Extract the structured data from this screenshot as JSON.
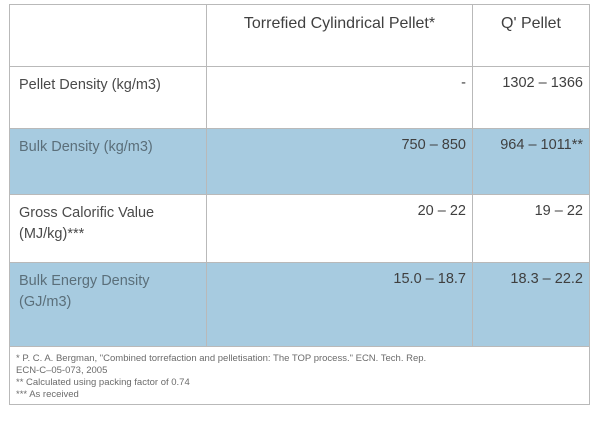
{
  "table": {
    "headers": [
      "",
      "Torrefied Cylindrical Pellet*",
      "Q' Pellet"
    ],
    "rows": [
      {
        "label": "Pellet Density (kg/m3)",
        "torrefied": "-",
        "q_pellet": "1302 – 1366"
      },
      {
        "label": "Bulk Density (kg/m3)",
        "torrefied": "750 – 850",
        "q_pellet": "964 – 1011**"
      },
      {
        "label": "Gross Calorific Value (MJ/kg)***",
        "torrefied": "20 – 22",
        "q_pellet": "19 – 22"
      },
      {
        "label": "Bulk Energy Density (GJ/m3)",
        "torrefied": "15.0 – 18.7",
        "q_pellet": "18.3 – 22.2"
      }
    ],
    "notes": [
      "* P. C. A. Bergman, \"Combined torrefaction and pelletisation: The TOP process.\" ECN. Tech. Rep.",
      "ECN-C–05-073, 2005",
      "** Calculated using packing factor of 0.74",
      "*** As received"
    ]
  },
  "colors": {
    "shaded_row": "#a7cbe0",
    "border": "#b9b9b9"
  }
}
